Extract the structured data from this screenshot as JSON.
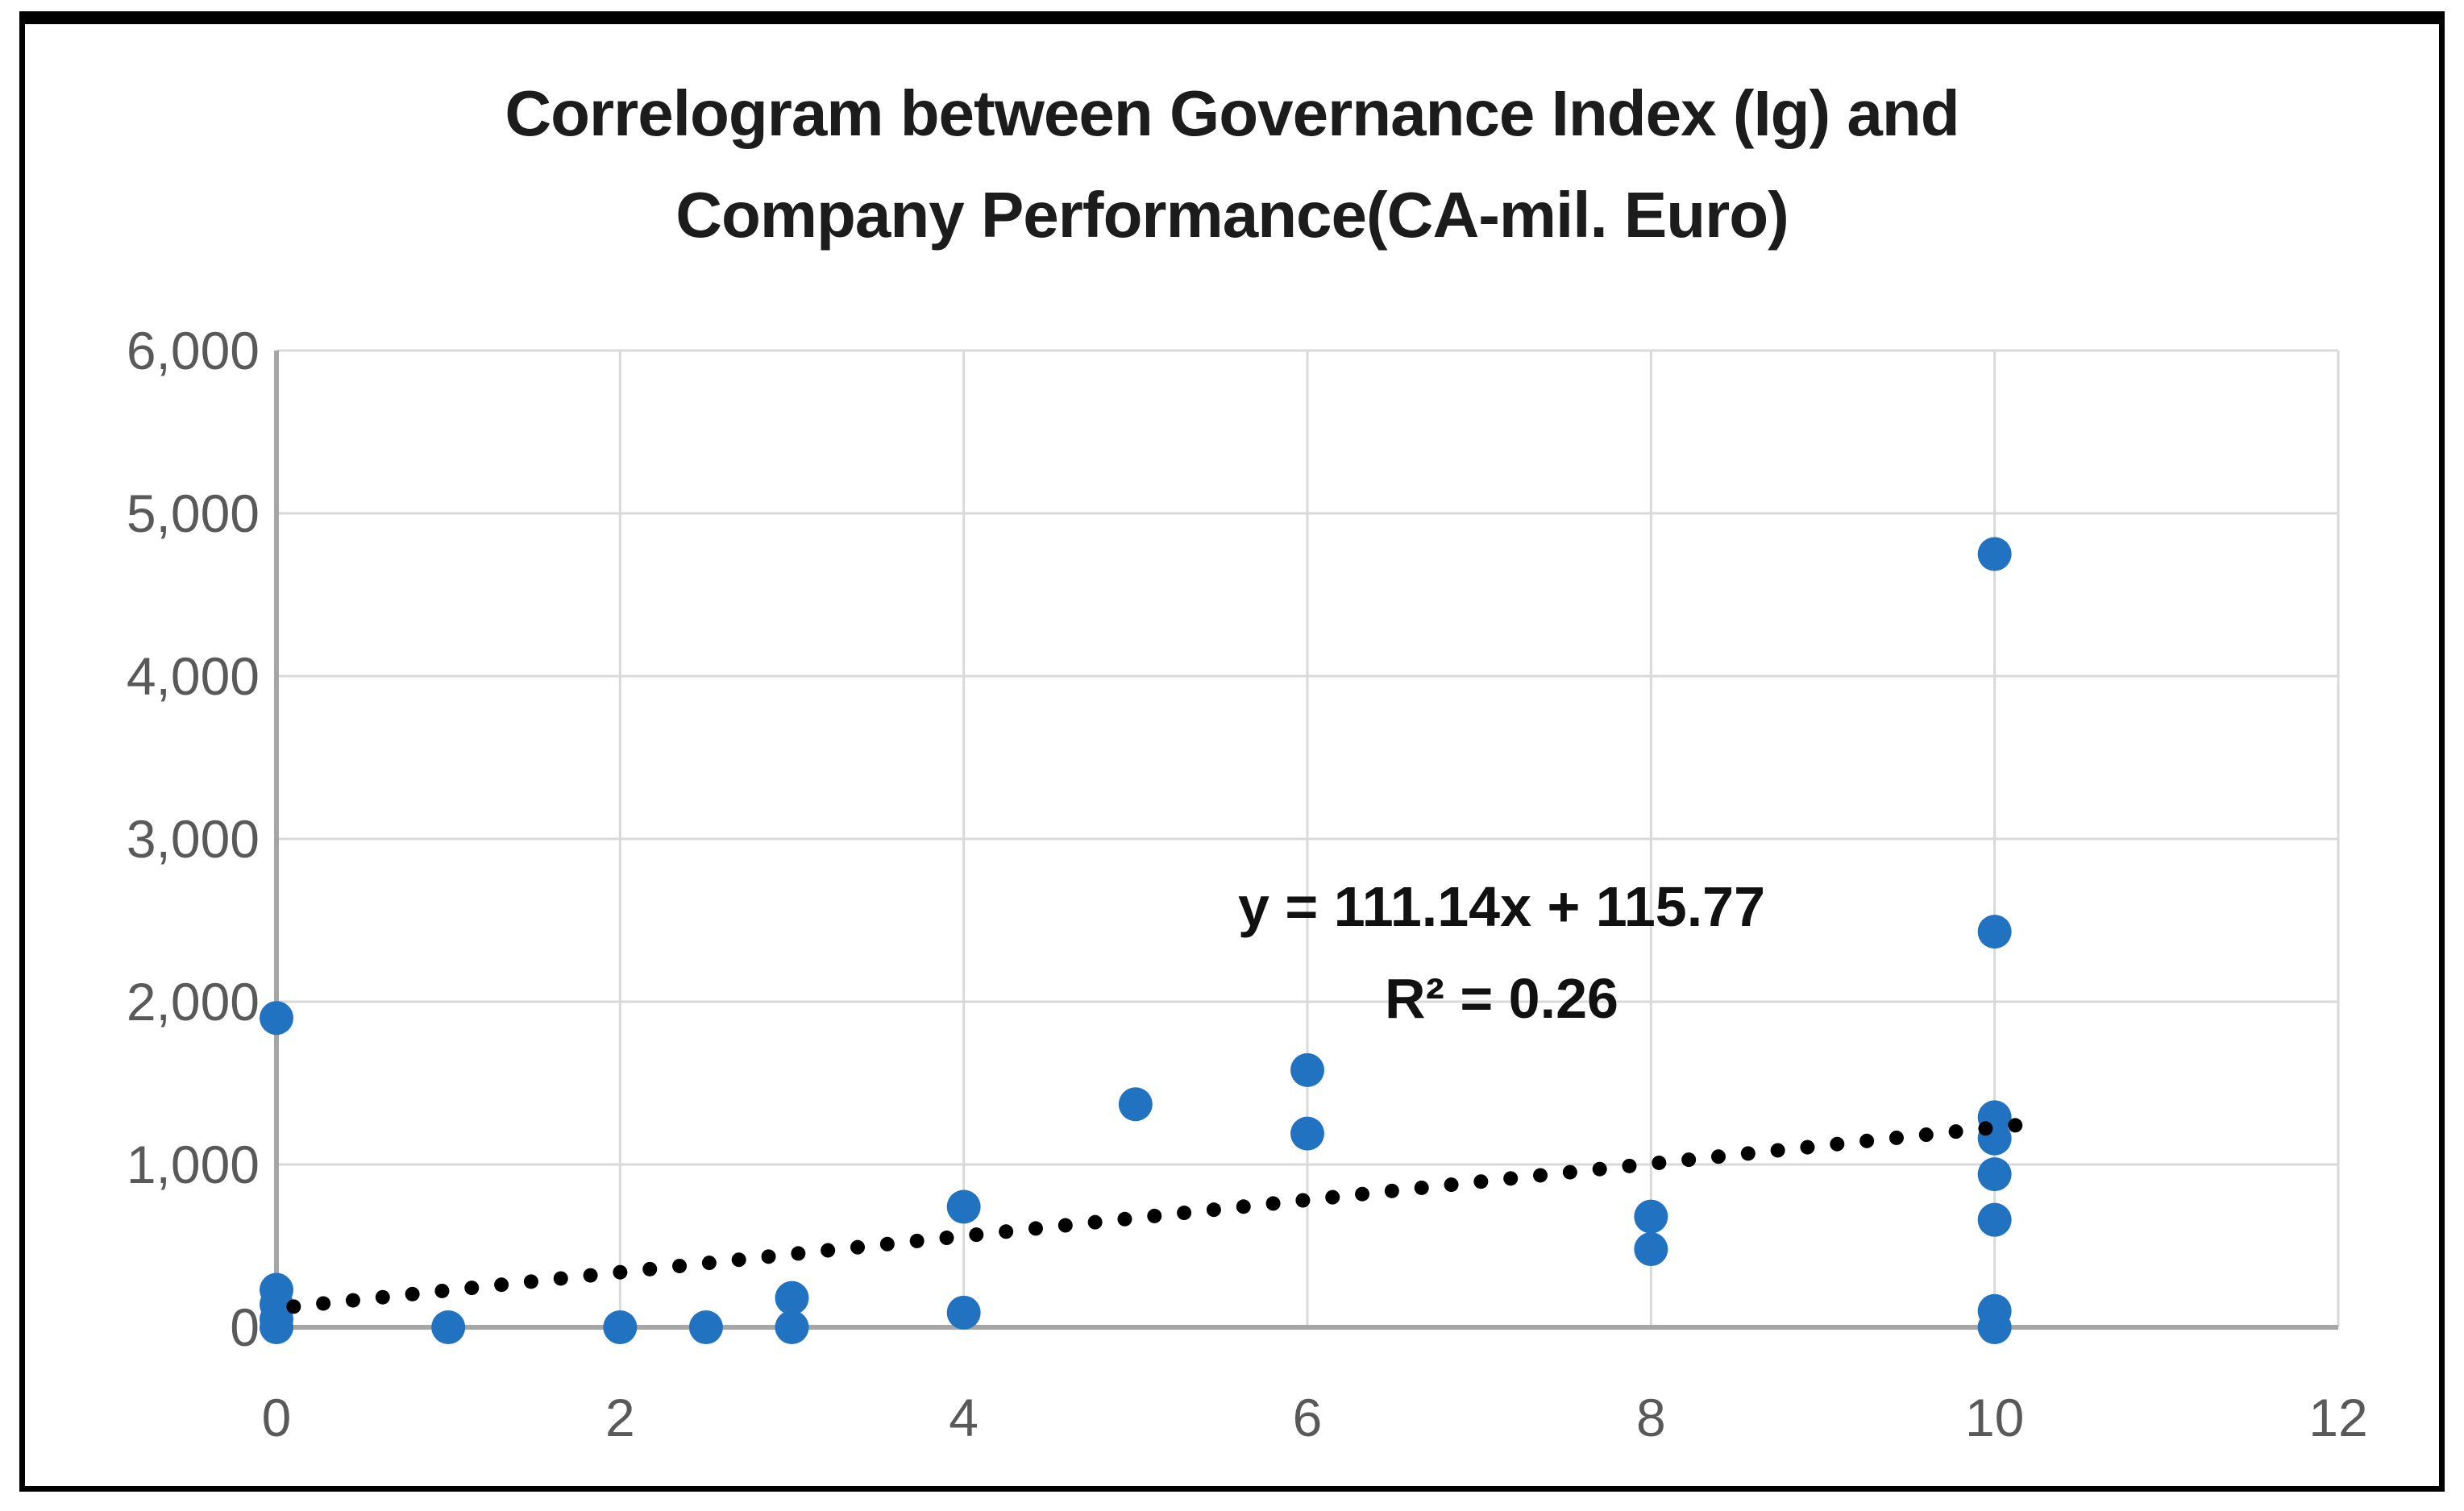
{
  "chart_data": {
    "type": "scatter",
    "title": "Correlogram between Governance Index (Ig) and Company Performance(CA-mil. Euro)",
    "title_line1": "Correlogram between Governance Index (Ig) and",
    "title_line2": "Company Performance(CA-mil. Euro)",
    "xlabel": "",
    "ylabel": "",
    "xlim": [
      0,
      12
    ],
    "ylim": [
      0,
      6000
    ],
    "x_ticks": [
      0,
      2,
      4,
      6,
      8,
      10,
      12
    ],
    "x_tick_labels": [
      "0",
      "2",
      "4",
      "6",
      "8",
      "10",
      "12"
    ],
    "y_ticks": [
      0,
      1000,
      2000,
      3000,
      4000,
      5000,
      6000
    ],
    "y_tick_labels": [
      "0",
      "1,000",
      "2,000",
      "3,000",
      "4,000",
      "5,000",
      "6,000"
    ],
    "grid": true,
    "legend": "none",
    "series": [
      {
        "name": "Company Performance (CA-mil. Euro)",
        "marker": "circle",
        "points": [
          [
            0,
            1900
          ],
          [
            0,
            230
          ],
          [
            0,
            140
          ],
          [
            0,
            50
          ],
          [
            0,
            0
          ],
          [
            1,
            0
          ],
          [
            2,
            0
          ],
          [
            2.5,
            0
          ],
          [
            3,
            180
          ],
          [
            3,
            0
          ],
          [
            4,
            740
          ],
          [
            4,
            90
          ],
          [
            5,
            1370
          ],
          [
            6,
            1580
          ],
          [
            6,
            1190
          ],
          [
            8,
            680
          ],
          [
            8,
            480
          ],
          [
            10,
            4750
          ],
          [
            10,
            2430
          ],
          [
            10,
            1290
          ],
          [
            10,
            1160
          ],
          [
            10,
            940
          ],
          [
            10,
            660
          ],
          [
            10,
            100
          ],
          [
            10,
            0
          ]
        ]
      }
    ],
    "trendline": {
      "equation": "y = 111.14x + 115.77",
      "r_squared_label": "R² = 0.26",
      "slope": 111.14,
      "intercept": 115.77,
      "x_start": 0.1,
      "x_end": 10.12,
      "style": "dotted",
      "color": "#000000"
    },
    "colors": {
      "marker": "#2173C2",
      "gridline": "#D9D9D9",
      "axis": "#A6A6A6",
      "tick_label": "#595959",
      "title": "#1c1c1c",
      "equation": "#111111",
      "border": "#000000",
      "background": "#FFFFFF"
    }
  }
}
